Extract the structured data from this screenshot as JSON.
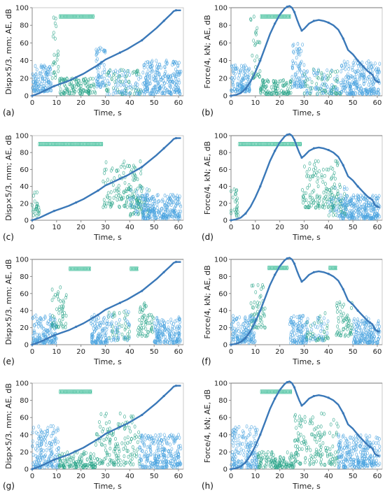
{
  "colors": {
    "curve": "#3a78b8",
    "ae_blue": "#4aa3df",
    "ae_green": "#2aa58a",
    "band": "#22b08a",
    "axis": "#888888",
    "bg": "#ffffff"
  },
  "chart_data": [
    {
      "id": "a",
      "type": "scatter",
      "panel_label": "(a)",
      "xlabel": "Time, s",
      "ylabel": "Disp×5/3, mm; AE, dB",
      "xlim": [
        0,
        62
      ],
      "ylim": [
        0,
        100
      ],
      "xticks": [
        0,
        10,
        20,
        30,
        40,
        50,
        60
      ],
      "yticks": [
        0,
        20,
        40,
        60,
        80,
        100
      ],
      "curve_kind": "disp",
      "top_line": false,
      "bands": [
        {
          "x0": 11,
          "x1": 25.5,
          "y": 90
        }
      ],
      "ae_segments": [
        [
          0,
          8,
          5,
          35,
          "b"
        ],
        [
          8,
          11,
          20,
          90,
          "g"
        ],
        [
          11,
          26,
          2,
          20,
          "g"
        ],
        [
          26,
          30,
          10,
          60,
          "b"
        ],
        [
          30,
          45,
          2,
          30,
          "mix"
        ],
        [
          45,
          61,
          2,
          40,
          "b"
        ]
      ]
    },
    {
      "id": "b",
      "type": "scatter",
      "panel_label": "(b)",
      "xlabel": "Time, s",
      "ylabel": "Force/4, kN; AE, dB",
      "xlim": [
        0,
        62
      ],
      "ylim": [
        0,
        100
      ],
      "xticks": [
        0,
        10,
        20,
        30,
        40,
        50,
        60
      ],
      "yticks": [
        0,
        20,
        40,
        60,
        80,
        100
      ],
      "curve_kind": "force",
      "top_line": true,
      "bands": [
        {
          "x0": 12,
          "x1": 24.5,
          "y": 90
        }
      ],
      "ae_segments": [
        [
          0,
          8,
          5,
          35,
          "b"
        ],
        [
          8,
          12,
          20,
          90,
          "g"
        ],
        [
          12,
          25,
          2,
          18,
          "g"
        ],
        [
          25,
          30,
          10,
          60,
          "b"
        ],
        [
          30,
          45,
          2,
          30,
          "mix"
        ],
        [
          45,
          61,
          2,
          40,
          "b"
        ]
      ]
    },
    {
      "id": "c",
      "type": "scatter",
      "panel_label": "(c)",
      "xlabel": "Time, s",
      "ylabel": "Disp×5/3, mm; AE, dB",
      "xlim": [
        0,
        62
      ],
      "ylim": [
        0,
        100
      ],
      "xticks": [
        0,
        10,
        20,
        30,
        40,
        50,
        60
      ],
      "yticks": [
        0,
        20,
        40,
        60,
        80,
        100
      ],
      "curve_kind": "disp",
      "top_line": false,
      "bands": [
        {
          "x0": 2.5,
          "x1": 29,
          "y": 90
        }
      ],
      "ae_segments": [
        [
          0,
          3,
          5,
          40,
          "g"
        ],
        [
          29,
          45,
          15,
          70,
          "g"
        ],
        [
          40,
          48,
          5,
          40,
          "mix"
        ],
        [
          45,
          61,
          2,
          30,
          "b"
        ]
      ]
    },
    {
      "id": "d",
      "type": "scatter",
      "panel_label": "(d)",
      "xlabel": "Time, s",
      "ylabel": "Force/4, kN; AE, dB",
      "xlim": [
        0,
        62
      ],
      "ylim": [
        0,
        100
      ],
      "xticks": [
        0,
        10,
        20,
        30,
        40,
        50,
        60
      ],
      "yticks": [
        0,
        20,
        40,
        60,
        80,
        100
      ],
      "curve_kind": "force",
      "top_line": true,
      "bands": [
        {
          "x0": 3,
          "x1": 29,
          "y": 90
        }
      ],
      "ae_segments": [
        [
          0,
          3,
          5,
          40,
          "g"
        ],
        [
          29,
          45,
          15,
          70,
          "g"
        ],
        [
          40,
          48,
          5,
          40,
          "mix"
        ],
        [
          45,
          61,
          2,
          30,
          "b"
        ]
      ]
    },
    {
      "id": "e",
      "type": "scatter",
      "panel_label": "(e)",
      "xlabel": "Time, s",
      "ylabel": "Disp×5/3, mm; AE, dB",
      "xlim": [
        0,
        62
      ],
      "ylim": [
        0,
        100
      ],
      "xticks": [
        0,
        10,
        20,
        30,
        40,
        50,
        60
      ],
      "yticks": [
        0,
        20,
        40,
        60,
        80,
        100
      ],
      "curve_kind": "disp",
      "top_line": true,
      "bands": [
        {
          "x0": 15,
          "x1": 24,
          "y": 89
        },
        {
          "x0": 40,
          "x1": 43.5,
          "y": 89
        }
      ],
      "ae_segments": [
        [
          0,
          10,
          2,
          35,
          "b"
        ],
        [
          8,
          14,
          20,
          70,
          "g"
        ],
        [
          24,
          31,
          2,
          35,
          "b"
        ],
        [
          31,
          40,
          5,
          40,
          "mix"
        ],
        [
          43,
          50,
          10,
          50,
          "g"
        ],
        [
          50,
          61,
          2,
          32,
          "b"
        ]
      ]
    },
    {
      "id": "f",
      "type": "scatter",
      "panel_label": "(f)",
      "xlabel": "Time, s",
      "ylabel": "Force/4, kN; AE, dB",
      "xlim": [
        0,
        62
      ],
      "ylim": [
        0,
        100
      ],
      "xticks": [
        0,
        10,
        20,
        30,
        40,
        50,
        60
      ],
      "yticks": [
        0,
        20,
        40,
        60,
        80,
        100
      ],
      "curve_kind": "force",
      "top_line": true,
      "bands": [
        {
          "x0": 15,
          "x1": 23.5,
          "y": 90
        },
        {
          "x0": 40,
          "x1": 43.5,
          "y": 90
        }
      ],
      "ae_segments": [
        [
          0,
          10,
          2,
          35,
          "b"
        ],
        [
          8,
          14,
          20,
          70,
          "g"
        ],
        [
          24,
          31,
          2,
          35,
          "b"
        ],
        [
          31,
          40,
          5,
          40,
          "mix"
        ],
        [
          43,
          50,
          10,
          50,
          "g"
        ],
        [
          50,
          61,
          2,
          32,
          "b"
        ]
      ]
    },
    {
      "id": "g",
      "type": "scatter",
      "panel_label": "(g)",
      "xlabel": "Time, s",
      "ylabel": "Disp×5/3, mm; AE, dB",
      "xlim": [
        0,
        62
      ],
      "ylim": [
        0,
        100
      ],
      "xticks": [
        0,
        10,
        20,
        30,
        40,
        50,
        60
      ],
      "yticks": [
        0,
        20,
        40,
        60,
        80,
        100
      ],
      "curve_kind": "disp",
      "top_line": false,
      "bands": [
        {
          "x0": 11,
          "x1": 24.5,
          "y": 90
        }
      ],
      "ae_segments": [
        [
          0,
          11,
          2,
          50,
          "b"
        ],
        [
          11,
          26,
          2,
          20,
          "g"
        ],
        [
          26,
          44,
          5,
          65,
          "g"
        ],
        [
          44,
          61,
          2,
          40,
          "b"
        ]
      ]
    },
    {
      "id": "h",
      "type": "scatter",
      "panel_label": "(h)",
      "xlabel": "Time, s",
      "ylabel": "Force/4, kN; AE, dB",
      "xlim": [
        0,
        62
      ],
      "ylim": [
        0,
        100
      ],
      "xticks": [
        0,
        10,
        20,
        30,
        40,
        50,
        60
      ],
      "yticks": [
        0,
        20,
        40,
        60,
        80,
        100
      ],
      "curve_kind": "force",
      "top_line": true,
      "bands": [
        {
          "x0": 12,
          "x1": 25,
          "y": 90
        }
      ],
      "ae_segments": [
        [
          0,
          11,
          2,
          50,
          "b"
        ],
        [
          11,
          26,
          2,
          20,
          "g"
        ],
        [
          26,
          44,
          5,
          65,
          "g"
        ],
        [
          44,
          61,
          2,
          40,
          "b"
        ]
      ]
    }
  ],
  "curves": {
    "disp": {
      "x": [
        0,
        3,
        6,
        9,
        12,
        15,
        18,
        21,
        24,
        27,
        30,
        33,
        36,
        39,
        42,
        45,
        48,
        51,
        54,
        57,
        58,
        59,
        60,
        61
      ],
      "y": [
        0,
        3,
        7,
        11,
        14,
        17,
        21,
        25,
        30,
        35,
        41,
        45,
        49,
        53,
        58,
        63,
        70,
        77,
        85,
        93,
        96,
        97,
        97,
        97
      ]
    },
    "force": {
      "x": [
        0,
        2,
        4,
        6,
        8,
        10,
        12,
        14,
        16,
        18,
        20,
        22,
        23,
        24,
        25,
        26,
        27,
        28,
        29,
        30,
        32,
        34,
        36,
        38,
        40,
        42,
        44,
        46,
        48,
        50,
        52,
        54,
        56,
        57,
        58,
        59,
        60,
        61
      ],
      "y": [
        0,
        1,
        3,
        8,
        16,
        27,
        40,
        55,
        70,
        82,
        92,
        99,
        101,
        102,
        100,
        95,
        87,
        80,
        74,
        76,
        82,
        85,
        86,
        85,
        83,
        80,
        75,
        65,
        52,
        47,
        40,
        34,
        28,
        26,
        24,
        18,
        16,
        15
      ]
    }
  }
}
